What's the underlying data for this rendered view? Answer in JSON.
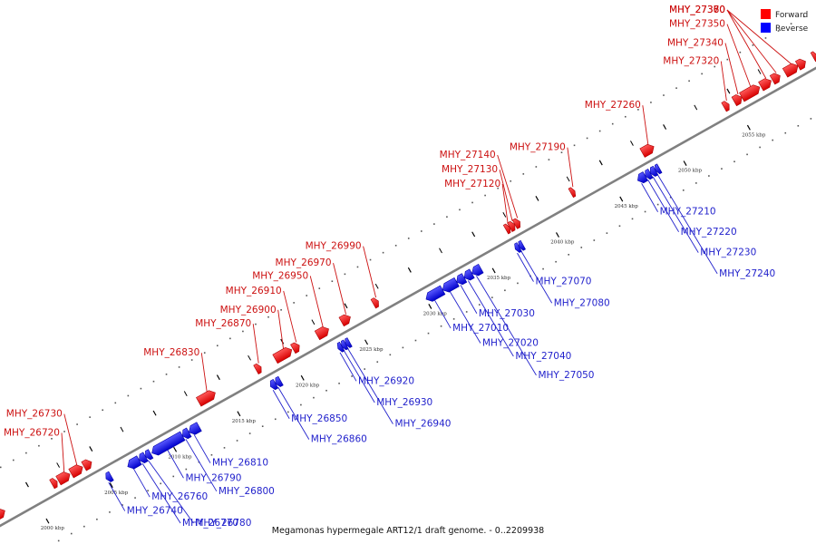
{
  "colors": {
    "forward": "#ff0000",
    "reverse": "#0000ff",
    "axis": "#808080",
    "forward_label": "#cc1111",
    "reverse_label": "#2222cc"
  },
  "legend": {
    "forward": "Forward",
    "reverse": "Reverse"
  },
  "title": "Megamonas hypermegale ART12/1 draft genome. - 0..2209938",
  "axis": {
    "start_kbp": 1997,
    "end_kbp": 2061,
    "unit": "kbp"
  },
  "ticks": [
    {
      "pos": 2000,
      "label": "2000 kbp"
    },
    {
      "pos": 2005,
      "label": "2005 kbp"
    },
    {
      "pos": 2010,
      "label": "2010 kbp"
    },
    {
      "pos": 2015,
      "label": "2015 kbp"
    },
    {
      "pos": 2020,
      "label": "2020 kbp"
    },
    {
      "pos": 2025,
      "label": "2025 kbp"
    },
    {
      "pos": 2030,
      "label": "2030 kbp"
    },
    {
      "pos": 2035,
      "label": "2035 kbp"
    },
    {
      "pos": 2040,
      "label": "2040 kbp"
    },
    {
      "pos": 2045,
      "label": "2045 kbp"
    },
    {
      "pos": 2050,
      "label": "2050 kbp"
    },
    {
      "pos": 2055,
      "label": "2055 kbp"
    }
  ],
  "forward_genes": [
    {
      "name": "",
      "start": 1997.0,
      "end": 1997.8
    },
    {
      "name": "",
      "start": 2001.5,
      "end": 2001.9
    },
    {
      "name": "MHY_26720",
      "start": 2002.0,
      "end": 2002.9
    },
    {
      "name": "MHY_26730",
      "start": 2003.0,
      "end": 2003.9
    },
    {
      "name": "",
      "start": 2004.0,
      "end": 2004.6
    },
    {
      "name": "MHY_26830",
      "start": 2013.0,
      "end": 2014.3
    },
    {
      "name": "MHY_26870",
      "start": 2017.5,
      "end": 2017.9
    },
    {
      "name": "MHY_26900",
      "start": 2019.0,
      "end": 2020.3
    },
    {
      "name": "MHY_26910",
      "start": 2020.4,
      "end": 2020.9
    },
    {
      "name": "MHY_26950",
      "start": 2022.3,
      "end": 2023.2
    },
    {
      "name": "MHY_26970",
      "start": 2024.2,
      "end": 2024.9
    },
    {
      "name": "MHY_26990",
      "start": 2026.7,
      "end": 2027.1
    },
    {
      "name": "MHY_27120",
      "start": 2037.1,
      "end": 2037.4
    },
    {
      "name": "MHY_27130",
      "start": 2037.4,
      "end": 2037.8
    },
    {
      "name": "MHY_27140",
      "start": 2037.8,
      "end": 2038.2
    },
    {
      "name": "MHY_27190",
      "start": 2042.2,
      "end": 2042.5
    },
    {
      "name": "MHY_27260",
      "start": 2047.8,
      "end": 2048.7
    },
    {
      "name": "MHY_27320",
      "start": 2054.2,
      "end": 2054.6
    },
    {
      "name": "MHY_27340",
      "start": 2055.0,
      "end": 2055.6
    },
    {
      "name": "MHY_27350",
      "start": 2055.6,
      "end": 2057.0
    },
    {
      "name": "MHY_27360",
      "start": 2057.1,
      "end": 2057.9
    },
    {
      "name": "MHY_27370",
      "start": 2058.0,
      "end": 2058.6
    },
    {
      "name": "MHY_27380",
      "start": 2059.0,
      "end": 2060.0
    },
    {
      "name": "",
      "start": 2060.0,
      "end": 2060.6
    },
    {
      "name": "",
      "start": 2061.2,
      "end": 2061.5
    }
  ],
  "reverse_genes": [
    {
      "name": "MHY_26740",
      "start": 2004.9,
      "end": 2005.3
    },
    {
      "name": "MHY_26760",
      "start": 2006.6,
      "end": 2007.5
    },
    {
      "name": "MHY_26770",
      "start": 2007.5,
      "end": 2008.0
    },
    {
      "name": "MHY_26780",
      "start": 2008.0,
      "end": 2008.4
    },
    {
      "name": "MHY_26790",
      "start": 2008.5,
      "end": 2010.9
    },
    {
      "name": "MHY_26800",
      "start": 2010.9,
      "end": 2011.4
    },
    {
      "name": "MHY_26810",
      "start": 2011.4,
      "end": 2012.2
    },
    {
      "name": "MHY_26850",
      "start": 2017.8,
      "end": 2018.2
    },
    {
      "name": "MHY_26860",
      "start": 2018.2,
      "end": 2018.6
    },
    {
      "name": "MHY_26920",
      "start": 2023.1,
      "end": 2023.4
    },
    {
      "name": "MHY_26930",
      "start": 2023.4,
      "end": 2023.7
    },
    {
      "name": "MHY_26940",
      "start": 2023.7,
      "end": 2024.0
    },
    {
      "name": "MHY_27010",
      "start": 2030.0,
      "end": 2031.3
    },
    {
      "name": "MHY_27020",
      "start": 2031.3,
      "end": 2032.4
    },
    {
      "name": "MHY_27030",
      "start": 2032.4,
      "end": 2033.0
    },
    {
      "name": "MHY_27040",
      "start": 2033.0,
      "end": 2033.6
    },
    {
      "name": "MHY_27050",
      "start": 2033.6,
      "end": 2034.3
    },
    {
      "name": "MHY_27070",
      "start": 2037.0,
      "end": 2037.3
    },
    {
      "name": "MHY_27080",
      "start": 2037.3,
      "end": 2037.6
    },
    {
      "name": "MHY_27210",
      "start": 2046.6,
      "end": 2047.2
    },
    {
      "name": "MHY_27220",
      "start": 2047.2,
      "end": 2047.6
    },
    {
      "name": "MHY_27230",
      "start": 2047.6,
      "end": 2048.0
    },
    {
      "name": "MHY_27240",
      "start": 2048.0,
      "end": 2048.3
    }
  ],
  "forward_labels": [
    {
      "gene": "MHY_26720",
      "text": "MHY_26720"
    },
    {
      "gene": "MHY_26730",
      "text": "MHY_26730"
    },
    {
      "gene": "MHY_26830",
      "text": "MHY_26830"
    },
    {
      "gene": "MHY_26870",
      "text": "MHY_26870"
    },
    {
      "gene": "MHY_26900",
      "text": "MHY_26900"
    },
    {
      "gene": "MHY_26910",
      "text": "MHY_26910"
    },
    {
      "gene": "MHY_26950",
      "text": "MHY_26950"
    },
    {
      "gene": "MHY_26970",
      "text": "MHY_26970"
    },
    {
      "gene": "MHY_26990",
      "text": "MHY_26990"
    },
    {
      "gene": "MHY_27120",
      "text": "MHY_27120"
    },
    {
      "gene": "MHY_27130",
      "text": "MHY_27130"
    },
    {
      "gene": "MHY_27140",
      "text": "MHY_27140"
    },
    {
      "gene": "MHY_27190",
      "text": "MHY_27190"
    },
    {
      "gene": "MHY_27260",
      "text": "MHY_27260"
    },
    {
      "gene": "MHY_27320",
      "text": "MHY_27320"
    },
    {
      "gene": "MHY_27340",
      "text": "MHY_27340"
    },
    {
      "gene": "MHY_27350",
      "text": "MHY_27350"
    },
    {
      "gene": "MHY_27360",
      "text": "MHY_27360"
    },
    {
      "gene": "MHY_27370",
      "text": "MHY_27370"
    },
    {
      "gene": "MHY_27380",
      "text": "MHY_27380"
    }
  ],
  "reverse_labels": [
    {
      "gene": "MHY_26740",
      "text": "MHY_26740"
    },
    {
      "gene": "MHY_26760",
      "text": "MHY_26760"
    },
    {
      "gene": "MHY_26770",
      "text": "MHY_26770"
    },
    {
      "gene": "MHY_26780",
      "text": "MHY_26780"
    },
    {
      "gene": "MHY_26790",
      "text": "MHY_26790"
    },
    {
      "gene": "MHY_26800",
      "text": "MHY_26800"
    },
    {
      "gene": "MHY_26810",
      "text": "MHY_26810"
    },
    {
      "gene": "MHY_26850",
      "text": "MHY_26850"
    },
    {
      "gene": "MHY_26860",
      "text": "MHY_26860"
    },
    {
      "gene": "MHY_26920",
      "text": "MHY_26920"
    },
    {
      "gene": "MHY_26930",
      "text": "MHY_26930"
    },
    {
      "gene": "MHY_26940",
      "text": "MHY_26940"
    },
    {
      "gene": "MHY_27010",
      "text": "MHY_27010"
    },
    {
      "gene": "MHY_27020",
      "text": "MHY_27020"
    },
    {
      "gene": "MHY_27030",
      "text": "MHY_27030"
    },
    {
      "gene": "MHY_27040",
      "text": "MHY_27040"
    },
    {
      "gene": "MHY_27050",
      "text": "MHY_27050"
    },
    {
      "gene": "MHY_27070",
      "text": "MHY_27070"
    },
    {
      "gene": "MHY_27080",
      "text": "MHY_27080"
    },
    {
      "gene": "MHY_27210",
      "text": "MHY_27210"
    },
    {
      "gene": "MHY_27220",
      "text": "MHY_27220"
    },
    {
      "gene": "MHY_27230",
      "text": "MHY_27230"
    },
    {
      "gene": "MHY_27240",
      "text": "MHY_27240"
    }
  ]
}
